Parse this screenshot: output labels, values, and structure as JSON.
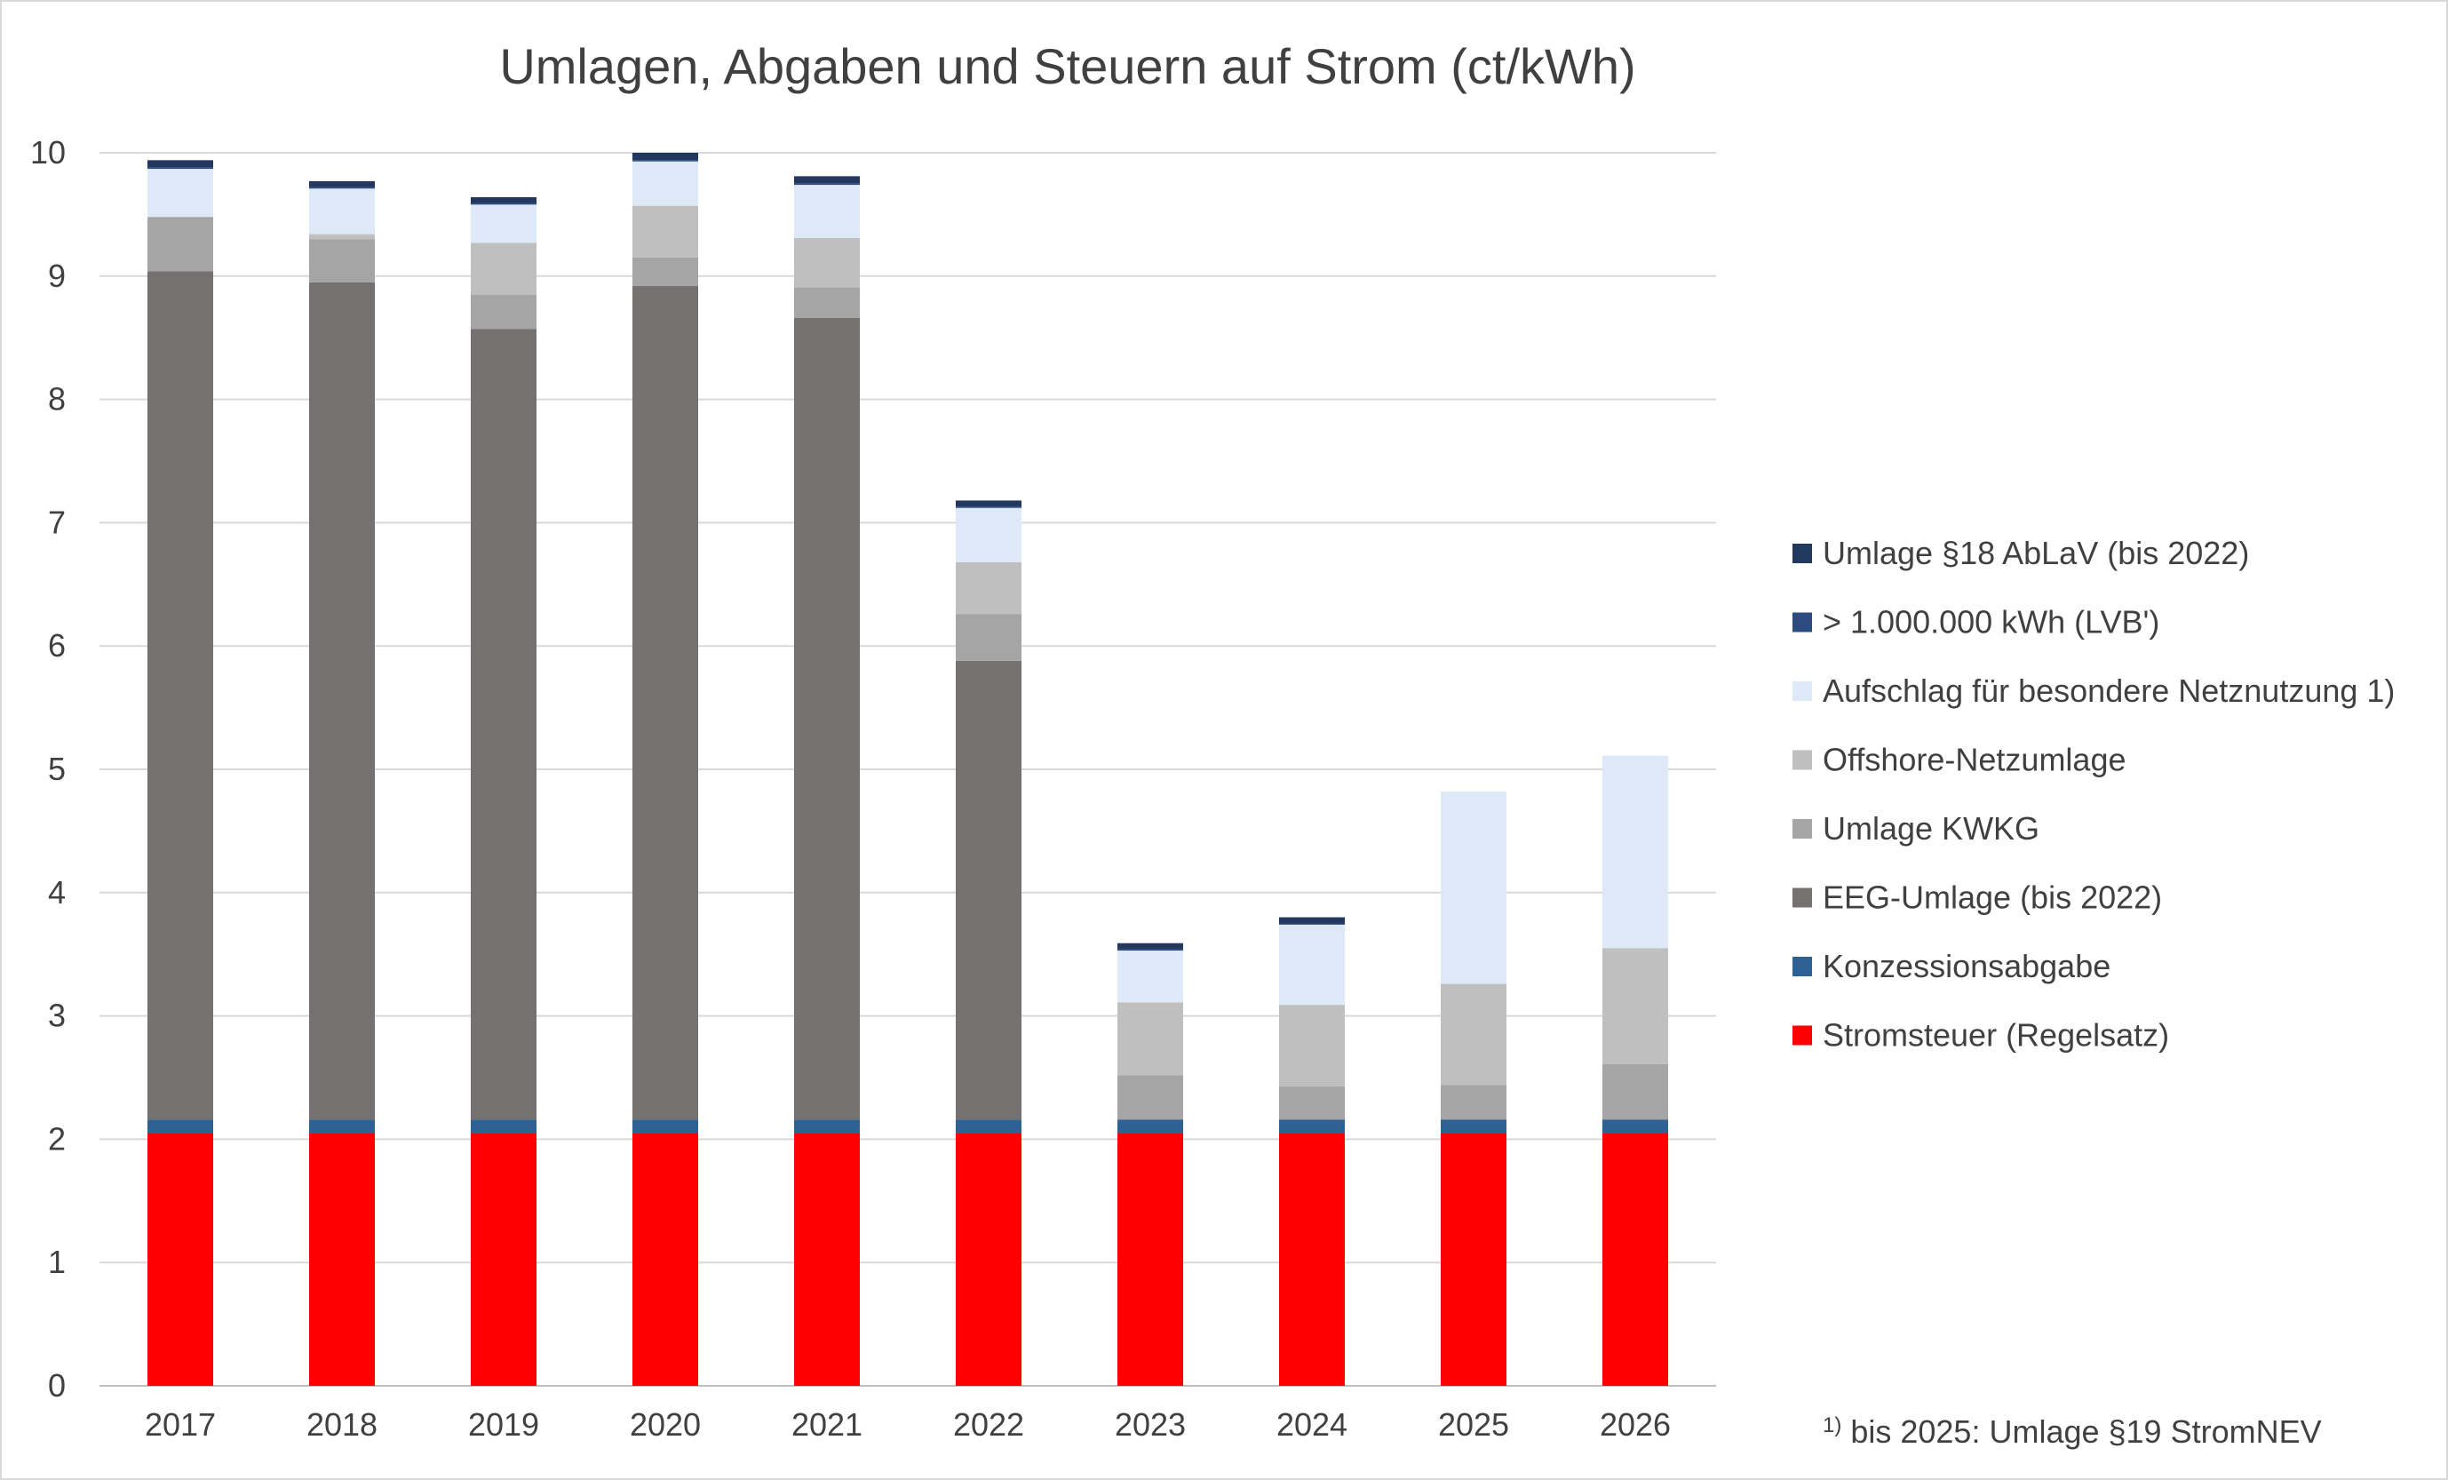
{
  "chart_data": {
    "type": "bar",
    "stacked": true,
    "title": "Umlagen, Abgaben und Steuern auf Strom (ct/kWh)",
    "xlabel": "",
    "ylabel": "",
    "ylim": [
      0,
      10
    ],
    "yticks": [
      0,
      1,
      2,
      3,
      4,
      5,
      6,
      7,
      8,
      9,
      10
    ],
    "grid": true,
    "legend_position": "right",
    "categories": [
      "2017",
      "2018",
      "2019",
      "2020",
      "2021",
      "2022",
      "2023",
      "2024",
      "2025",
      "2026"
    ],
    "series": [
      {
        "name": "Stromsteuer (Regelsatz)",
        "color": "#ff0000",
        "values": [
          2.05,
          2.05,
          2.05,
          2.05,
          2.05,
          2.05,
          2.05,
          2.05,
          2.05,
          2.05
        ]
      },
      {
        "name": "Konzessionsabgabe",
        "color": "#2e6295",
        "values": [
          0.11,
          0.11,
          0.11,
          0.11,
          0.11,
          0.11,
          0.11,
          0.11,
          0.11,
          0.11
        ]
      },
      {
        "name": "EEG-Umlage (bis 2022)",
        "color": "#757171",
        "values": [
          6.88,
          6.79,
          6.41,
          6.76,
          6.5,
          3.72,
          0,
          0,
          0,
          0
        ]
      },
      {
        "name": "Umlage KWKG",
        "color": "#a5a5a5",
        "values": [
          0.44,
          0.35,
          0.28,
          0.23,
          0.25,
          0.38,
          0.36,
          0.27,
          0.28,
          0.45
        ]
      },
      {
        "name": "Offshore-Netzumlage",
        "color": "#c0bfbf",
        "values": [
          0,
          0.04,
          0.42,
          0.42,
          0.4,
          0.42,
          0.59,
          0.66,
          0.82,
          0.94
        ]
      },
      {
        "name": "Aufschlag für besondere Netznutzung 1)",
        "color": "#dde9f6",
        "values": [
          0.39,
          0.37,
          0.31,
          0.36,
          0.43,
          0.44,
          0.42,
          0.65,
          1.56,
          1.56
        ]
      },
      {
        "name": "> 1.000.000 kWh (LVB')",
        "color": "#2c4c80",
        "values": [
          0.01,
          0.01,
          0.01,
          0.01,
          0.01,
          0.01,
          0.01,
          0.01,
          0,
          0
        ]
      },
      {
        "name": "Umlage §18  AbLaV (bis 2022)",
        "color": "#22385e",
        "values": [
          0.06,
          0.05,
          0.05,
          0.06,
          0.06,
          0.05,
          0.05,
          0.05,
          0,
          0
        ]
      }
    ],
    "annotation": {
      "sup": "1)",
      "text": " bis 2025: Umlage §19 StromNEV"
    }
  }
}
